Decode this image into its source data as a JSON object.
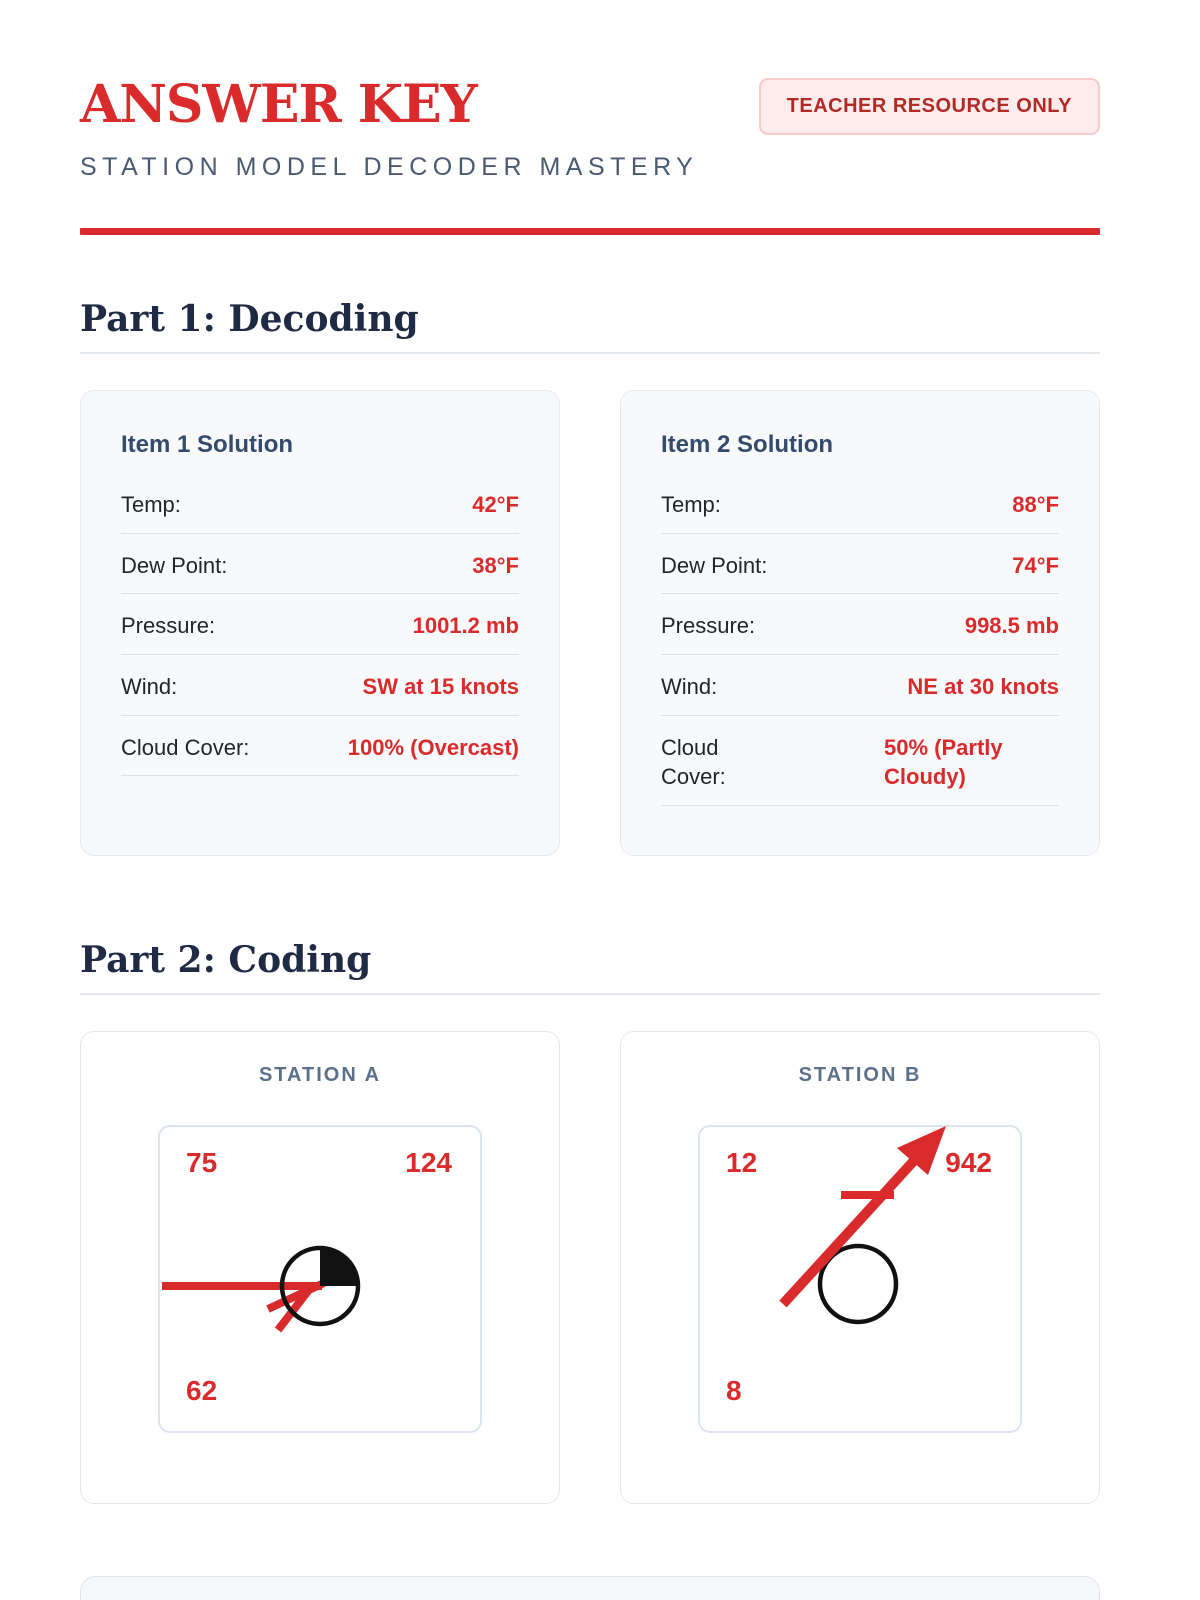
{
  "page": {
    "title": "ANSWER KEY",
    "badge": "TEACHER RESOURCE ONLY",
    "subtitle": "STATION MODEL DECODER MASTERY"
  },
  "colors": {
    "accent_red": "#d92b2b",
    "badge_text": "#b02a26",
    "badge_bg": "#fdeceb",
    "badge_border": "#f6cbc8",
    "heading_navy": "#1f2a44",
    "card_title_navy": "#344b6b",
    "station_title_slate": "#5b7089"
  },
  "part1": {
    "heading": "Part 1: Decoding",
    "cards": [
      {
        "title": "Item 1 Solution",
        "rows": [
          {
            "label": "Temp:",
            "value": "42°F"
          },
          {
            "label": "Dew Point:",
            "value": "38°F"
          },
          {
            "label": "Pressure:",
            "value": "1001.2 mb"
          },
          {
            "label": "Wind:",
            "value": "SW at 15 knots"
          },
          {
            "label": "Cloud Cover:",
            "value": "100% (Overcast)"
          }
        ]
      },
      {
        "title": "Item 2 Solution",
        "rows": [
          {
            "label": "Temp:",
            "value": "88°F"
          },
          {
            "label": "Dew Point:",
            "value": "74°F"
          },
          {
            "label": "Pressure:",
            "value": "998.5 mb"
          },
          {
            "label": "Wind:",
            "value": "NE at 30 knots"
          },
          {
            "label": "Cloud Cover:",
            "value": "50% (Partly Cloudy)"
          }
        ]
      }
    ]
  },
  "part2": {
    "heading": "Part 2: Coding",
    "stations": [
      {
        "title": "STATION A",
        "top_left": "75",
        "top_right": "124",
        "bottom_left": "62",
        "model_icon": "station-model-quarter-shaded-circle-west-staff-two-barbs-icon"
      },
      {
        "title": "STATION B",
        "top_left": "12",
        "top_right": "942",
        "bottom_left": "8",
        "model_icon": "station-model-open-circle-northeast-arrow-one-barb-icon"
      }
    ]
  }
}
